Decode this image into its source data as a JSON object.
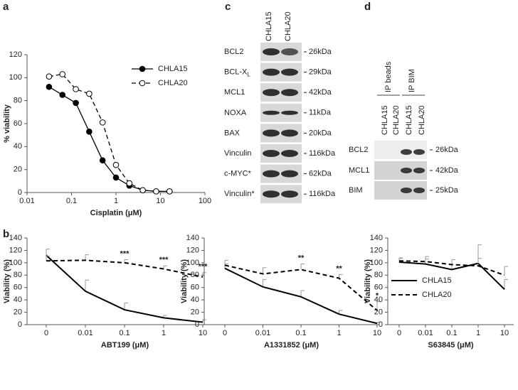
{
  "panel_labels": [
    "a",
    "b",
    "c",
    "d"
  ],
  "chart_data": [
    {
      "type": "line",
      "xlabel": "Cisplatin (μM)",
      "ylabel": "% viability",
      "log_x": true,
      "xlim": [
        0.01,
        100
      ],
      "xticks": [
        0.01,
        0.1,
        1,
        10,
        100
      ],
      "ylim": [
        0,
        120
      ],
      "yticks": [
        0,
        20,
        40,
        60,
        80,
        100,
        120
      ],
      "legend": "upper right",
      "series": [
        {
          "name": "CHLA15",
          "color": "#000000",
          "marker": "filled",
          "linestyle": "solid",
          "x": [
            0.03125,
            0.0625,
            0.125,
            0.25,
            0.5,
            1,
            2,
            4,
            8,
            16
          ],
          "values": [
            92,
            85,
            78,
            53,
            28,
            13,
            6,
            2,
            1,
            1
          ]
        },
        {
          "name": "CHLA20",
          "color": "#000000",
          "marker": "open",
          "linestyle": "dashed",
          "x": [
            0.03125,
            0.0625,
            0.125,
            0.25,
            0.5,
            1,
            2,
            4,
            8,
            16
          ],
          "values": [
            101,
            103,
            90,
            86,
            61,
            24,
            8,
            2,
            1,
            1
          ]
        }
      ]
    },
    {
      "type": "errorline",
      "xlabel": "ABT199 (μM)",
      "ylabel": "Viability (%)",
      "categories": [
        "0",
        "0.01",
        "0.1",
        "1",
        "10"
      ],
      "ylim": [
        0,
        140
      ],
      "yticks": [
        0,
        20,
        40,
        60,
        80,
        100,
        120,
        140
      ],
      "series": [
        {
          "color": "#000000",
          "linestyle": "solid",
          "values": [
            112,
            54,
            24,
            11,
            4
          ],
          "errors": [
            10,
            18,
            11,
            4,
            4
          ]
        },
        {
          "color": "#000000",
          "linestyle": "dashed",
          "values": [
            103,
            104,
            100,
            90,
            77
          ],
          "errors": [
            8,
            9,
            5,
            5,
            7
          ]
        }
      ],
      "annotations": [
        {
          "text": "***",
          "category": "0.1"
        },
        {
          "text": "***",
          "category": "1"
        },
        {
          "text": "***",
          "category": "10"
        }
      ]
    },
    {
      "type": "errorline",
      "xlabel": "A1331852 (μM)",
      "ylabel": "Viability (%)",
      "categories": [
        "0",
        "0.01",
        "0.1",
        "1",
        "10"
      ],
      "ylim": [
        0,
        140
      ],
      "yticks": [
        0,
        20,
        40,
        60,
        80,
        100,
        120,
        140
      ],
      "series": [
        {
          "color": "#000000",
          "linestyle": "solid",
          "values": [
            91,
            61,
            45,
            17,
            2
          ],
          "errors": [
            7,
            12,
            10,
            6,
            2
          ]
        },
        {
          "color": "#000000",
          "linestyle": "dashed",
          "values": [
            96,
            82,
            89,
            75,
            23
          ],
          "errors": [
            8,
            10,
            9,
            6,
            14
          ]
        }
      ],
      "annotations": [
        {
          "text": "**",
          "category": "0.1"
        },
        {
          "text": "**",
          "category": "1"
        },
        {
          "text": "*",
          "category": "10"
        }
      ]
    },
    {
      "type": "errorline",
      "xlabel": "S63845 (μM)",
      "ylabel": "Viability (%)",
      "categories": [
        "0",
        "0.01",
        "0.1",
        "1",
        "10"
      ],
      "ylim": [
        0,
        140
      ],
      "yticks": [
        0,
        20,
        40,
        60,
        80,
        100,
        120,
        140
      ],
      "legend": "lower left",
      "series": [
        {
          "name": "CHLA15",
          "color": "#000000",
          "linestyle": "solid",
          "values": [
            101,
            98,
            89,
            99,
            57
          ],
          "errors": [
            6,
            8,
            16,
            30,
            16
          ]
        },
        {
          "name": "CHLA20",
          "color": "#000000",
          "linestyle": "dashed",
          "values": [
            103,
            102,
            97,
            95,
            80
          ],
          "errors": [
            5,
            8,
            8,
            12,
            14
          ]
        }
      ]
    }
  ],
  "blot_c": {
    "columns": [
      "CHLA15",
      "CHLA20"
    ],
    "rows": [
      {
        "label": "BCL2",
        "size": "26kDa"
      },
      {
        "label": "BCL-X",
        "subscript": "L",
        "size": "29kDa"
      },
      {
        "label": "MCL1",
        "size": "42kDa"
      },
      {
        "label": "NOXA",
        "size": "11kDa"
      },
      {
        "label": "BAX",
        "size": "20kDa"
      },
      {
        "label": "Vinculin",
        "size": "116kDa"
      },
      {
        "label": "c-MYC*",
        "size": "62kDa"
      },
      {
        "label": "Vinculin*",
        "size": "116kDa"
      }
    ]
  },
  "blot_d": {
    "groups": [
      "IP beads",
      "IP BIM"
    ],
    "columns": [
      "CHLA15",
      "CHLA20",
      "CHLA15",
      "CHLA20"
    ],
    "rows": [
      {
        "label": "BCL2",
        "size": "26kDa"
      },
      {
        "label": "MCL1",
        "size": "42kDa"
      },
      {
        "label": "BIM",
        "size": "25kDa"
      }
    ]
  }
}
